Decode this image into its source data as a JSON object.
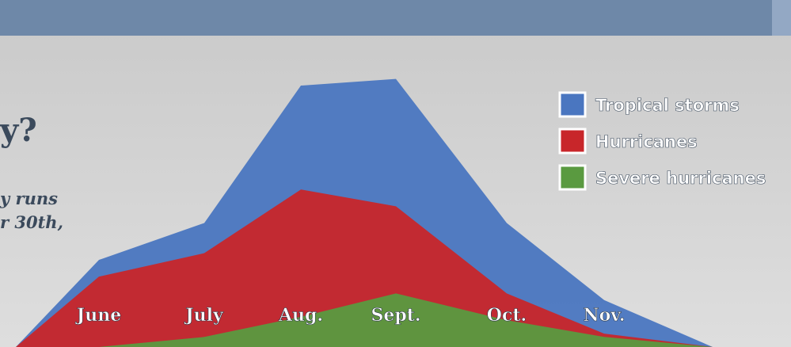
{
  "chart_data": {
    "type": "area",
    "heading_fragment": "y?",
    "body_fragments": [
      "y runs",
      "r 30th,"
    ],
    "categories": [
      "June",
      "July",
      "Aug.",
      "Sept.",
      "Oct.",
      "Nov."
    ],
    "ylim": [
      0,
      100
    ],
    "series": [
      {
        "name": "Tropical storms",
        "color": "#4a76c0",
        "values": [
          26,
          37,
          78,
          80,
          37,
          14
        ]
      },
      {
        "name": "Hurricanes",
        "color": "#c8262a",
        "values": [
          21,
          28,
          47,
          42,
          16,
          4
        ]
      },
      {
        "name": "Severe hurricanes",
        "color": "#5a9a40",
        "values": [
          0,
          3,
          9,
          16,
          8,
          3
        ]
      }
    ]
  }
}
